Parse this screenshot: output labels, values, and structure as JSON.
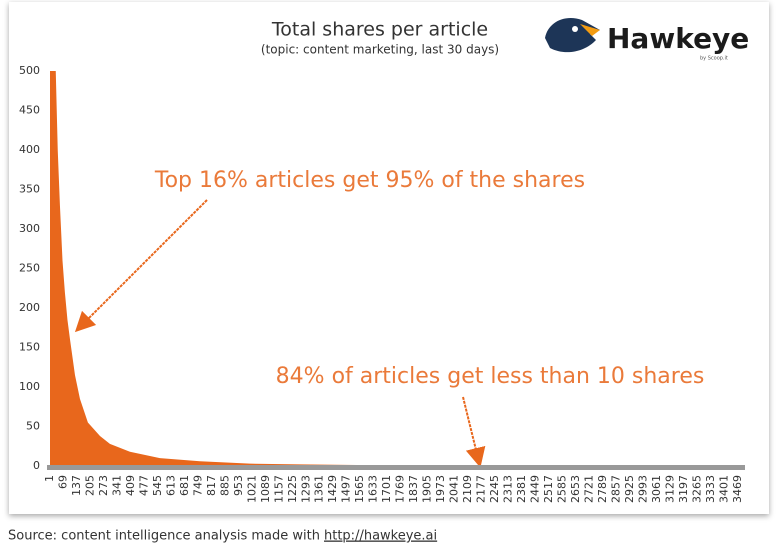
{
  "chart_data": {
    "type": "area",
    "title": "Total shares per article",
    "subtitle": "(topic: content marketing, last 30 days)",
    "annotations": [
      "Top 16% articles get 95% of the shares",
      "84% of articles get less than 10 shares"
    ],
    "x": [
      1,
      30,
      40,
      51,
      64,
      76,
      89,
      102,
      127,
      152,
      192,
      253,
      303,
      404,
      555,
      757,
      1009,
      1261,
      1664,
      1700,
      3469
    ],
    "values": [
      500,
      500,
      400,
      330,
      260,
      220,
      185,
      160,
      115,
      85,
      55,
      38,
      28,
      18,
      10,
      6,
      3,
      2,
      1,
      0,
      0
    ],
    "color": "#e8671c",
    "xlim": [
      1,
      3505
    ],
    "xticks": [
      1,
      69,
      137,
      205,
      273,
      341,
      409,
      477,
      545,
      613,
      681,
      749,
      817,
      885,
      953,
      1021,
      1089,
      1157,
      1225,
      1293,
      1361,
      1429,
      1497,
      1565,
      1633,
      1701,
      1769,
      1837,
      1905,
      1973,
      2041,
      2109,
      2177,
      2245,
      2313,
      2381,
      2449,
      2517,
      2585,
      2653,
      2721,
      2789,
      2857,
      2925,
      2993,
      3061,
      3129,
      3197,
      3265,
      3333,
      3401,
      3469
    ],
    "ylim": [
      0,
      500
    ],
    "yticks": [
      0,
      50,
      100,
      150,
      200,
      250,
      300,
      350,
      400,
      450,
      500
    ],
    "grid": false
  },
  "logo": {
    "name": "Hawkeye",
    "tagline": "by Scoop.it"
  },
  "source": {
    "text": "Source: content intelligence analysis made with",
    "link": "http://hawkeye.ai"
  }
}
